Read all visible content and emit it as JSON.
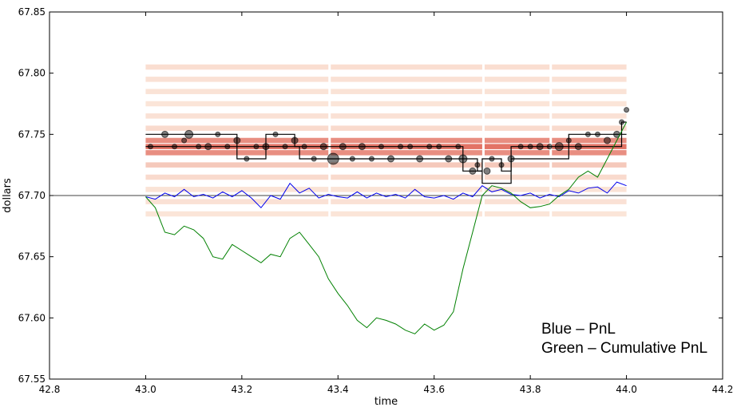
{
  "chart_data": {
    "type": "line",
    "xlabel": "time",
    "ylabel": "dollars",
    "xlim": [
      42.8,
      44.2
    ],
    "ylim": [
      67.55,
      67.85
    ],
    "xticks": [
      "42.8",
      "43.0",
      "43.2",
      "43.4",
      "43.6",
      "43.8",
      "44.0",
      "44.2"
    ],
    "yticks": [
      "67.55",
      "67.60",
      "67.65",
      "67.70",
      "67.75",
      "67.80",
      "67.85"
    ],
    "reference_line": 67.7,
    "annotations": [
      "Blue – PnL",
      "Green – Cumulative PnL"
    ],
    "colors": {
      "pnl": "#0000ee",
      "cumulative": "#008000",
      "quotes": "#000000",
      "heat_high": "#d42a1a",
      "heat_low": "#fdeee0"
    },
    "heatmap_levels": [
      {
        "price": 67.805,
        "intensity": 0.1
      },
      {
        "price": 67.795,
        "intensity": 0.08
      },
      {
        "price": 67.785,
        "intensity": 0.07
      },
      {
        "price": 67.775,
        "intensity": 0.06
      },
      {
        "price": 67.765,
        "intensity": 0.08
      },
      {
        "price": 67.755,
        "intensity": 0.12
      },
      {
        "price": 67.745,
        "intensity": 0.55
      },
      {
        "price": 67.74,
        "intensity": 0.7
      },
      {
        "price": 67.735,
        "intensity": 0.55
      },
      {
        "price": 67.725,
        "intensity": 0.22
      },
      {
        "price": 67.715,
        "intensity": 0.12
      },
      {
        "price": 67.705,
        "intensity": 0.07
      },
      {
        "price": 67.695,
        "intensity": 0.08
      },
      {
        "price": 67.685,
        "intensity": 0.06
      }
    ],
    "upper_quote": {
      "x": [
        43.0,
        43.19,
        43.19,
        43.25,
        43.25,
        43.31,
        43.31,
        43.66,
        43.66,
        43.69,
        43.69,
        43.7,
        43.7,
        43.74,
        43.74,
        43.76,
        43.76,
        43.88,
        43.88,
        43.99,
        43.99,
        44.0
      ],
      "y": [
        67.75,
        67.75,
        67.74,
        67.74,
        67.75,
        67.75,
        67.74,
        67.74,
        67.73,
        67.73,
        67.72,
        67.72,
        67.73,
        67.73,
        67.72,
        67.72,
        67.74,
        67.74,
        67.75,
        67.75,
        67.76,
        67.76
      ]
    },
    "lower_quote": {
      "x": [
        43.0,
        43.19,
        43.19,
        43.25,
        43.25,
        43.32,
        43.32,
        43.4,
        43.4,
        43.6,
        43.6,
        43.66,
        43.66,
        43.7,
        43.7,
        43.76,
        43.76,
        43.88,
        43.88,
        43.99,
        43.99,
        44.0
      ],
      "y": [
        67.74,
        67.74,
        67.73,
        67.73,
        67.74,
        67.74,
        67.73,
        67.73,
        67.73,
        67.73,
        67.73,
        67.73,
        67.72,
        67.72,
        67.71,
        67.71,
        67.73,
        67.73,
        67.74,
        67.74,
        67.75,
        67.75
      ]
    },
    "trades": [
      {
        "x": 43.01,
        "y": 67.74,
        "r": 3
      },
      {
        "x": 43.04,
        "y": 67.75,
        "r": 4
      },
      {
        "x": 43.06,
        "y": 67.74,
        "r": 3
      },
      {
        "x": 43.08,
        "y": 67.745,
        "r": 3
      },
      {
        "x": 43.09,
        "y": 67.75,
        "r": 5
      },
      {
        "x": 43.11,
        "y": 67.74,
        "r": 3
      },
      {
        "x": 43.13,
        "y": 67.74,
        "r": 4
      },
      {
        "x": 43.15,
        "y": 67.75,
        "r": 3
      },
      {
        "x": 43.17,
        "y": 67.74,
        "r": 3
      },
      {
        "x": 43.19,
        "y": 67.745,
        "r": 4
      },
      {
        "x": 43.21,
        "y": 67.73,
        "r": 3
      },
      {
        "x": 43.23,
        "y": 67.74,
        "r": 3
      },
      {
        "x": 43.25,
        "y": 67.74,
        "r": 4
      },
      {
        "x": 43.27,
        "y": 67.75,
        "r": 3
      },
      {
        "x": 43.29,
        "y": 67.74,
        "r": 3
      },
      {
        "x": 43.31,
        "y": 67.745,
        "r": 4
      },
      {
        "x": 43.33,
        "y": 67.74,
        "r": 3
      },
      {
        "x": 43.35,
        "y": 67.73,
        "r": 3
      },
      {
        "x": 43.37,
        "y": 67.74,
        "r": 4
      },
      {
        "x": 43.39,
        "y": 67.73,
        "r": 7
      },
      {
        "x": 43.41,
        "y": 67.74,
        "r": 4
      },
      {
        "x": 43.43,
        "y": 67.73,
        "r": 3
      },
      {
        "x": 43.45,
        "y": 67.74,
        "r": 4
      },
      {
        "x": 43.47,
        "y": 67.73,
        "r": 3
      },
      {
        "x": 43.49,
        "y": 67.74,
        "r": 3
      },
      {
        "x": 43.51,
        "y": 67.73,
        "r": 4
      },
      {
        "x": 43.53,
        "y": 67.74,
        "r": 3
      },
      {
        "x": 43.55,
        "y": 67.74,
        "r": 3
      },
      {
        "x": 43.57,
        "y": 67.73,
        "r": 4
      },
      {
        "x": 43.59,
        "y": 67.74,
        "r": 3
      },
      {
        "x": 43.61,
        "y": 67.74,
        "r": 3
      },
      {
        "x": 43.63,
        "y": 67.73,
        "r": 4
      },
      {
        "x": 43.65,
        "y": 67.74,
        "r": 3
      },
      {
        "x": 43.66,
        "y": 67.73,
        "r": 5
      },
      {
        "x": 43.68,
        "y": 67.72,
        "r": 4
      },
      {
        "x": 43.69,
        "y": 67.725,
        "r": 3
      },
      {
        "x": 43.71,
        "y": 67.72,
        "r": 4
      },
      {
        "x": 43.72,
        "y": 67.73,
        "r": 3
      },
      {
        "x": 43.74,
        "y": 67.725,
        "r": 3
      },
      {
        "x": 43.76,
        "y": 67.73,
        "r": 4
      },
      {
        "x": 43.78,
        "y": 67.74,
        "r": 3
      },
      {
        "x": 43.8,
        "y": 67.74,
        "r": 3
      },
      {
        "x": 43.82,
        "y": 67.74,
        "r": 4
      },
      {
        "x": 43.84,
        "y": 67.74,
        "r": 3
      },
      {
        "x": 43.86,
        "y": 67.74,
        "r": 5
      },
      {
        "x": 43.88,
        "y": 67.745,
        "r": 3
      },
      {
        "x": 43.9,
        "y": 67.74,
        "r": 4
      },
      {
        "x": 43.92,
        "y": 67.75,
        "r": 3
      },
      {
        "x": 43.94,
        "y": 67.75,
        "r": 3
      },
      {
        "x": 43.96,
        "y": 67.745,
        "r": 4
      },
      {
        "x": 43.98,
        "y": 67.75,
        "r": 4
      },
      {
        "x": 43.99,
        "y": 67.76,
        "r": 3
      },
      {
        "x": 44.0,
        "y": 67.77,
        "r": 3
      }
    ],
    "series": [
      {
        "name": "Blue – PnL",
        "color": "#0000ee",
        "x": [
          43.0,
          43.02,
          43.04,
          43.06,
          43.08,
          43.1,
          43.12,
          43.14,
          43.16,
          43.18,
          43.2,
          43.22,
          43.24,
          43.26,
          43.28,
          43.3,
          43.32,
          43.34,
          43.36,
          43.38,
          43.4,
          43.42,
          43.44,
          43.46,
          43.48,
          43.5,
          43.52,
          43.54,
          43.56,
          43.58,
          43.6,
          43.62,
          43.64,
          43.66,
          43.68,
          43.7,
          43.72,
          43.74,
          43.76,
          43.78,
          43.8,
          43.82,
          43.84,
          43.86,
          43.88,
          43.9,
          43.92,
          43.94,
          43.96,
          43.98,
          44.0
        ],
        "y": [
          67.699,
          67.697,
          67.702,
          67.699,
          67.705,
          67.699,
          67.701,
          67.698,
          67.703,
          67.699,
          67.704,
          67.698,
          67.69,
          67.7,
          67.697,
          67.71,
          67.702,
          67.706,
          67.698,
          67.701,
          67.699,
          67.698,
          67.703,
          67.698,
          67.702,
          67.699,
          67.701,
          67.698,
          67.705,
          67.699,
          67.698,
          67.7,
          67.697,
          67.702,
          67.699,
          67.708,
          67.703,
          67.705,
          67.701,
          67.7,
          67.702,
          67.698,
          67.701,
          67.699,
          67.704,
          67.702,
          67.706,
          67.707,
          67.702,
          67.711,
          67.708
        ]
      },
      {
        "name": "Green – Cumulative PnL",
        "color": "#008000",
        "x": [
          43.0,
          43.02,
          43.04,
          43.06,
          43.08,
          43.1,
          43.12,
          43.14,
          43.16,
          43.18,
          43.2,
          43.22,
          43.24,
          43.26,
          43.28,
          43.3,
          43.32,
          43.34,
          43.36,
          43.38,
          43.4,
          43.42,
          43.44,
          43.46,
          43.48,
          43.5,
          43.52,
          43.54,
          43.56,
          43.58,
          43.6,
          43.62,
          43.64,
          43.66,
          43.68,
          43.7,
          43.72,
          43.74,
          43.76,
          43.78,
          43.8,
          43.82,
          43.84,
          43.86,
          43.88,
          43.9,
          43.92,
          43.94,
          43.96,
          43.98,
          44.0
        ],
        "y": [
          67.699,
          67.69,
          67.67,
          67.668,
          67.675,
          67.672,
          67.665,
          67.65,
          67.648,
          67.66,
          67.655,
          67.65,
          67.645,
          67.652,
          67.65,
          67.665,
          67.67,
          67.66,
          67.65,
          67.632,
          67.62,
          67.61,
          67.598,
          67.592,
          67.6,
          67.598,
          67.595,
          67.59,
          67.587,
          67.595,
          67.59,
          67.594,
          67.605,
          67.64,
          67.67,
          67.7,
          67.708,
          67.706,
          67.702,
          67.695,
          67.69,
          67.691,
          67.693,
          67.7,
          67.705,
          67.715,
          67.72,
          67.715,
          67.73,
          67.745,
          67.76
        ]
      }
    ]
  }
}
